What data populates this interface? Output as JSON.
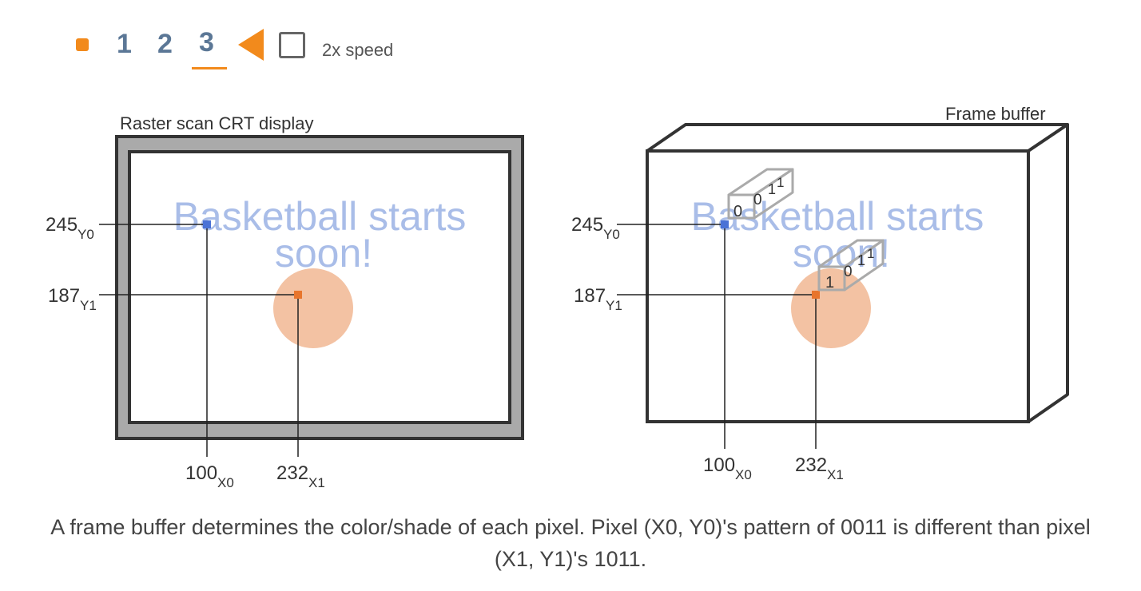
{
  "controls": {
    "steps": [
      "1",
      "2",
      "3"
    ],
    "active_step": "3",
    "speed_label": "2x speed",
    "accent_color": "#f28a1c",
    "step_color": "#5b7796",
    "icons": [
      "stop-icon",
      "back-triangle-icon",
      "checkbox-icon"
    ]
  },
  "left_panel": {
    "title": "Raster scan CRT display",
    "message_line1": "Basketball starts",
    "message_line2": "soon!",
    "y0_value": "245",
    "y0_sub": "Y0",
    "y1_value": "187",
    "y1_sub": "Y1",
    "x0_value": "100",
    "x0_sub": "X0",
    "x1_value": "232",
    "x1_sub": "X1"
  },
  "right_panel": {
    "title": "Frame buffer",
    "message_line1": "Basketball starts",
    "message_line2": "soon!",
    "y0_value": "245",
    "y0_sub": "Y0",
    "y1_value": "187",
    "y1_sub": "Y1",
    "x0_value": "100",
    "x0_sub": "X0",
    "x1_value": "232",
    "x1_sub": "X1",
    "bits_pixel0": [
      "0",
      "0",
      "1",
      "1"
    ],
    "bits_pixel1": [
      "1",
      "0",
      "1",
      "1"
    ]
  },
  "colors": {
    "message": "#a9bde8",
    "ball": "#f3c2a3",
    "pixel0": "#4a72d6",
    "pixel1": "#e8752c",
    "bezel": "#aaaaaa",
    "outline": "#333333"
  },
  "caption": "A frame buffer determines the color/shade of each pixel. Pixel (X0, Y0)'s pattern of 0011 is different than pixel (X1, Y1)'s 1011."
}
